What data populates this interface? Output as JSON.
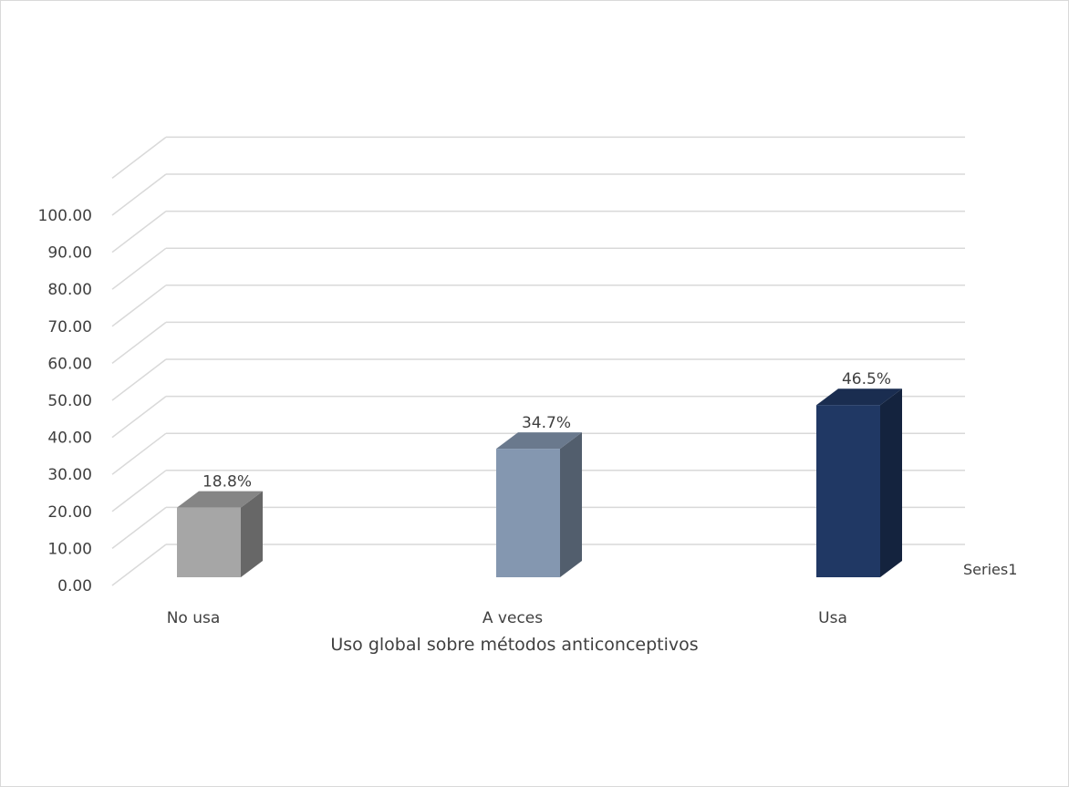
{
  "chart_data": {
    "type": "bar",
    "style": "3d-column",
    "categories": [
      "No usa",
      "A veces",
      "Usa"
    ],
    "series": [
      {
        "name": "Series1",
        "values": [
          18.8,
          34.7,
          46.5
        ],
        "data_labels": [
          "18.8%",
          "34.7%",
          "46.5%"
        ],
        "colors": [
          "#a6a6a6",
          "#8497b0",
          "#203864"
        ]
      }
    ],
    "xlabel": "Uso global sobre métodos anticonceptivos",
    "ylabel": "",
    "ylim": [
      0,
      100
    ],
    "y_ticks": [
      "0.00",
      "10.00",
      "20.00",
      "30.00",
      "40.00",
      "50.00",
      "60.00",
      "70.00",
      "80.00",
      "90.00",
      "100.00"
    ],
    "grid": true,
    "legend": "right"
  }
}
